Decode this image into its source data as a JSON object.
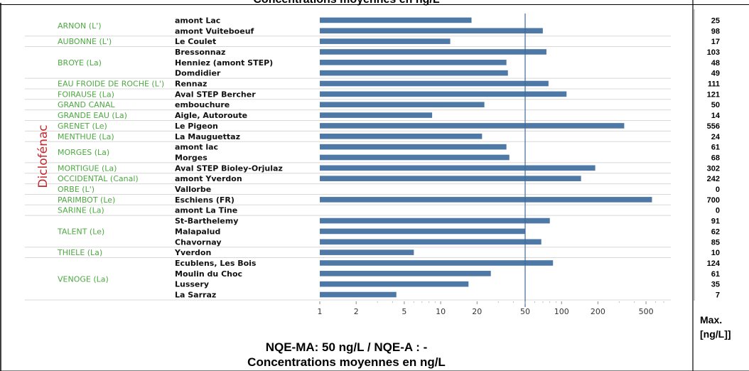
{
  "titles": {
    "top": "Concentrations moyennes en ng/L",
    "bottom_line1": "NQE-MA: 50 ng/L / NQE-A : -",
    "bottom_line2": "Concentrations moyennes en ng/L",
    "max_label_1": "Max.",
    "max_label_2": "[ng/L]]"
  },
  "chart_data": {
    "type": "bar",
    "orientation": "horizontal",
    "x_scale": "log",
    "xlim": [
      1,
      700
    ],
    "x_ticks": [
      1,
      2,
      5,
      10,
      20,
      50,
      100,
      200,
      500
    ],
    "x_tick_labels": [
      "1",
      "2",
      "5",
      "10",
      "20",
      "50",
      "100",
      "200",
      "500"
    ],
    "reference_line": 50,
    "parameter": "Diclofénac",
    "bar_color": "#4e79a7",
    "river_label_color": "#4ea843",
    "groups": [
      {
        "river": "ARNON (L')",
        "stations": [
          "amont Lac",
          "amont Vuiteboeuf"
        ]
      },
      {
        "river": "AUBONNE (L')",
        "stations": [
          "Le Coulet"
        ]
      },
      {
        "river": "BROYE (La)",
        "stations": [
          "Bressonnaz",
          "Henniez (amont STEP)",
          "Domdidier"
        ]
      },
      {
        "river": "EAU FROIDE DE ROCHE (L')",
        "stations": [
          "Rennaz"
        ]
      },
      {
        "river": "FOIRAUSE (La)",
        "stations": [
          "Aval STEP Bercher"
        ]
      },
      {
        "river": "GRAND CANAL",
        "stations": [
          "embouchure"
        ]
      },
      {
        "river": "GRANDE EAU (La)",
        "stations": [
          "Aigle, Autoroute"
        ]
      },
      {
        "river": "GRENET (Le)",
        "stations": [
          "Le Pigeon"
        ]
      },
      {
        "river": "MENTHUE (La)",
        "stations": [
          "La Mauguettaz"
        ]
      },
      {
        "river": "MORGES (La)",
        "stations": [
          "amont lac",
          "Morges"
        ]
      },
      {
        "river": "MORTIGUE (La)",
        "stations": [
          "Aval STEP Bioley-Orjulaz"
        ]
      },
      {
        "river": "OCCIDENTAL (Canal)",
        "stations": [
          "amont Yverdon"
        ]
      },
      {
        "river": "ORBE (L')",
        "stations": [
          "Vallorbe"
        ]
      },
      {
        "river": "PARIMBOT (Le)",
        "stations": [
          "Eschiens (FR)"
        ]
      },
      {
        "river": "SARINE (La)",
        "stations": [
          "amont La Tine"
        ]
      },
      {
        "river": "TALENT (Le)",
        "stations": [
          "St-Barthelemy",
          "Malapalud",
          "Chavornay"
        ]
      },
      {
        "river": "THIELE (La)",
        "stations": [
          "Yverdon"
        ]
      },
      {
        "river": "VENOGE (La)",
        "stations": [
          "Ecublens, Les Bois",
          "Moulin du Choc",
          "Lussery",
          "La Sarraz"
        ]
      }
    ],
    "values": [
      18,
      70,
      12,
      75,
      35,
      36,
      78,
      110,
      23,
      8.5,
      330,
      22,
      35,
      37,
      190,
      145,
      1,
      560,
      1,
      80,
      50,
      68,
      6,
      85,
      26,
      17,
      4.3
    ],
    "max_values": [
      "25",
      "98",
      "17",
      "103",
      "48",
      "49",
      "111",
      "121",
      "50",
      "14",
      "556",
      "24",
      "61",
      "68",
      "302",
      "242",
      "0",
      "700",
      "0",
      "91",
      "62",
      "85",
      "10",
      "124",
      "61",
      "35",
      "7"
    ]
  }
}
